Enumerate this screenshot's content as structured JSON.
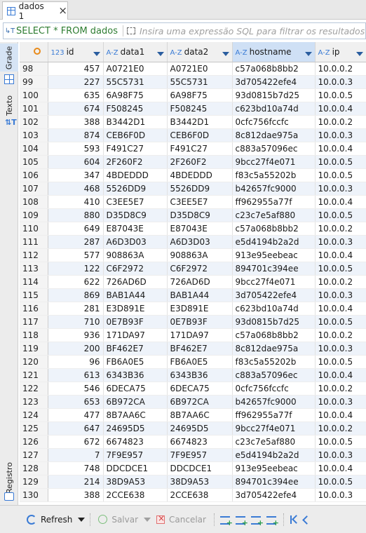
{
  "tab": {
    "label": "dados 1"
  },
  "filter": {
    "query": "SELECT * FROM dados",
    "placeholder": "Insira uma expressão SQL para filtrar os resultados"
  },
  "side_tabs": {
    "grid": "Grade",
    "text": "Texto",
    "record": "Registro"
  },
  "columns": [
    {
      "name": "id",
      "type": "123"
    },
    {
      "name": "data1",
      "type": "A-Z"
    },
    {
      "name": "data2",
      "type": "A-Z"
    },
    {
      "name": "hostname",
      "type": "A-Z"
    },
    {
      "name": "ip",
      "type": "A-Z"
    }
  ],
  "rows": [
    [
      "98",
      "457",
      "A0721E0",
      "A0721E0",
      "c57a068b8bb2",
      "10.0.0.2"
    ],
    [
      "99",
      "227",
      "55C5731",
      "55C5731",
      "3d705422efe4",
      "10.0.0.3"
    ],
    [
      "100",
      "635",
      "6A98F75",
      "6A98F75",
      "93d0815b7d25",
      "10.0.0.5"
    ],
    [
      "101",
      "674",
      "F508245",
      "F508245",
      "c623bd10a74d",
      "10.0.0.4"
    ],
    [
      "102",
      "388",
      "B3442D1",
      "B3442D1",
      "0cfc756fccfc",
      "10.0.0.2"
    ],
    [
      "103",
      "874",
      "CEB6F0D",
      "CEB6F0D",
      "8c812dae975a",
      "10.0.0.3"
    ],
    [
      "104",
      "593",
      "F491C27",
      "F491C27",
      "c883a57096ec",
      "10.0.0.4"
    ],
    [
      "105",
      "604",
      "2F260F2",
      "2F260F2",
      "9bcc27f4e071",
      "10.0.0.5"
    ],
    [
      "106",
      "347",
      "4BDEDDD",
      "4BDEDDD",
      "f83c5a55202b",
      "10.0.0.5"
    ],
    [
      "107",
      "468",
      "5526DD9",
      "5526DD9",
      "b42657fc9000",
      "10.0.0.3"
    ],
    [
      "108",
      "410",
      "C3EE5E7",
      "C3EE5E7",
      "ff962955a77f",
      "10.0.0.4"
    ],
    [
      "109",
      "880",
      "D35D8C9",
      "D35D8C9",
      "c23c7e5af880",
      "10.0.0.5"
    ],
    [
      "110",
      "649",
      "E87043E",
      "E87043E",
      "c57a068b8bb2",
      "10.0.0.2"
    ],
    [
      "111",
      "287",
      "A6D3D03",
      "A6D3D03",
      "e5d4194b2a2d",
      "10.0.0.3"
    ],
    [
      "112",
      "577",
      "908863A",
      "908863A",
      "913e95eebeac",
      "10.0.0.4"
    ],
    [
      "113",
      "122",
      "C6F2972",
      "C6F2972",
      "894701c394ee",
      "10.0.0.5"
    ],
    [
      "114",
      "622",
      "726AD6D",
      "726AD6D",
      "9bcc27f4e071",
      "10.0.0.2"
    ],
    [
      "115",
      "869",
      "BAB1A44",
      "BAB1A44",
      "3d705422efe4",
      "10.0.0.3"
    ],
    [
      "116",
      "281",
      "E3D891E",
      "E3D891E",
      "c623bd10a74d",
      "10.0.0.4"
    ],
    [
      "117",
      "710",
      "0E7B93F",
      "0E7B93F",
      "93d0815b7d25",
      "10.0.0.5"
    ],
    [
      "118",
      "936",
      "171DA97",
      "171DA97",
      "c57a068b8bb2",
      "10.0.0.2"
    ],
    [
      "119",
      "200",
      "BF462E7",
      "BF462E7",
      "8c812dae975a",
      "10.0.0.3"
    ],
    [
      "120",
      "96",
      "FB6A0E5",
      "FB6A0E5",
      "f83c5a55202b",
      "10.0.0.5"
    ],
    [
      "121",
      "613",
      "6343B36",
      "6343B36",
      "c883a57096ec",
      "10.0.0.4"
    ],
    [
      "122",
      "546",
      "6DECA75",
      "6DECA75",
      "0cfc756fccfc",
      "10.0.0.2"
    ],
    [
      "123",
      "653",
      "6B972CA",
      "6B972CA",
      "b42657fc9000",
      "10.0.0.3"
    ],
    [
      "124",
      "477",
      "8B7AA6C",
      "8B7AA6C",
      "ff962955a77f",
      "10.0.0.4"
    ],
    [
      "125",
      "647",
      "24695D5",
      "24695D5",
      "9bcc27f4e071",
      "10.0.0.2"
    ],
    [
      "126",
      "672",
      "6674823",
      "6674823",
      "c23c7e5af880",
      "10.0.0.5"
    ],
    [
      "127",
      "7",
      "7F9E957",
      "7F9E957",
      "e5d4194b2a2d",
      "10.0.0.3"
    ],
    [
      "128",
      "748",
      "DDCDCE1",
      "DDCDCE1",
      "913e95eebeac",
      "10.0.0.4"
    ],
    [
      "129",
      "214",
      "38D9A53",
      "38D9A53",
      "894701c394ee",
      "10.0.0.5"
    ],
    [
      "130",
      "388",
      "2CCE638",
      "2CCE638",
      "3d705422efe4",
      "10.0.0.3"
    ]
  ],
  "toolbar": {
    "refresh": "Refresh",
    "save": "Salvar",
    "cancel": "Cancelar"
  },
  "colors": {
    "accent": "#3a7bd5",
    "sql_green": "#2e7d32",
    "sorted_header": "#cfe0f5"
  }
}
